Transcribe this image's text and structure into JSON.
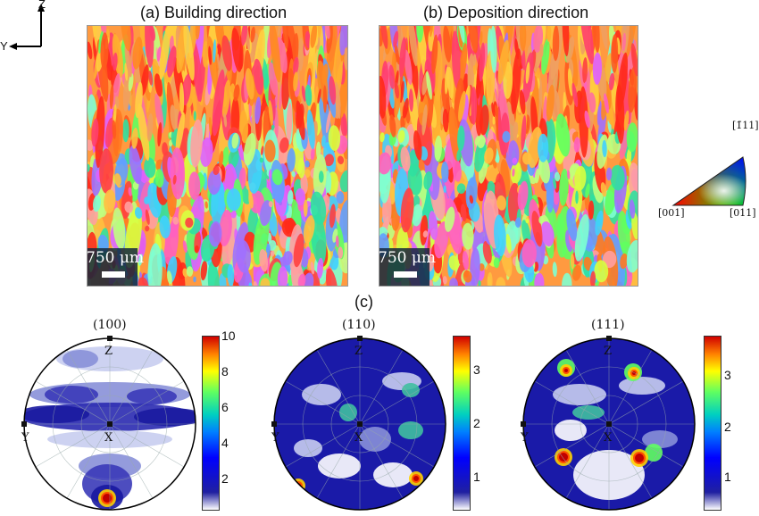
{
  "axes": {
    "vertical": "Z",
    "horizontal": "Y"
  },
  "panels": {
    "a": {
      "title": "(a) Building direction",
      "scale": "750 μm"
    },
    "b": {
      "title": "(b) Deposition direction",
      "scale": "750 μm"
    },
    "c": {
      "label": "(c)"
    }
  },
  "ipf_key": {
    "top": "[1̄11]",
    "left": "[001]",
    "right": "[011]"
  },
  "pole_figures": [
    {
      "title": "(100)",
      "labels": {
        "top": "Z",
        "left": "Y",
        "center": "X"
      },
      "colorbar": [
        "10",
        "8",
        "6",
        "4",
        "2"
      ]
    },
    {
      "title": "(110)",
      "labels": {
        "top": "Z",
        "left": "Y",
        "center": "X"
      },
      "colorbar": [
        "3",
        "2",
        "1"
      ]
    },
    {
      "title": "(111)",
      "labels": {
        "top": "Z",
        "left": "Y",
        "center": "X"
      },
      "colorbar": [
        "3",
        "2",
        "1"
      ]
    }
  ]
}
